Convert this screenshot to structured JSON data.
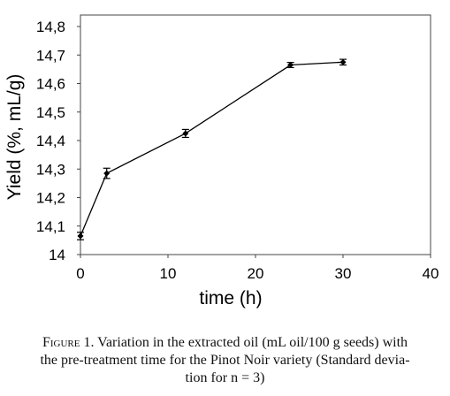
{
  "chart_data": {
    "type": "line",
    "xlabel": "time (h)",
    "ylabel": "Yield (%, mL/g)",
    "xlim": [
      0,
      40
    ],
    "ylim": [
      14,
      14.8
    ],
    "x_ticks": [
      "0",
      "10",
      "20",
      "30",
      "40"
    ],
    "y_ticks": [
      "14",
      "14,1",
      "14,2",
      "14,3",
      "14,4",
      "14,5",
      "14,6",
      "14,7",
      "14,8"
    ],
    "grid": false,
    "legend": "none",
    "series": [
      {
        "x": [
          0,
          3,
          12,
          24,
          30
        ],
        "y": [
          14.065,
          14.285,
          14.425,
          14.665,
          14.675
        ],
        "error": [
          0.013,
          0.018,
          0.014,
          0.009,
          0.01
        ]
      }
    ]
  },
  "caption": {
    "figure_label": "Figure 1.",
    "line1": "Variation in the extracted oil (mL oil/100 g seeds) with",
    "line2": "the pre-treatment time for the Pinot Noir variety (Standard devia-",
    "line3": "tion for n = 3)"
  }
}
